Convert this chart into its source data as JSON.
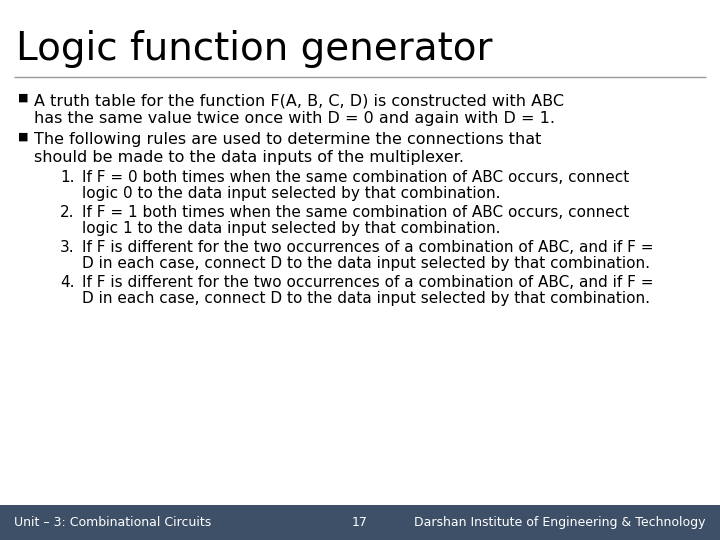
{
  "title": "Logic function generator",
  "bg_color": "#ffffff",
  "title_color": "#000000",
  "title_fontsize": 28,
  "body_fontsize": 11.5,
  "footer_fontsize": 9,
  "bullet1_line1": "A truth table for the function F(A, B, C, D) is constructed with ABC",
  "bullet1_line2": "has the same value twice once with D = 0 and again with D = 1.",
  "bullet2_line1": "The following rules are used to determine the connections that",
  "bullet2_line2": "should be made to the data inputs of the multiplexer.",
  "item1_line1": "If F = 0 both times when the same combination of ABC occurs, connect",
  "item1_line2": "logic 0 to the data input selected by that combination.",
  "item2_line1": "If F = 1 both times when the same combination of ABC occurs, connect",
  "item2_line2": "logic 1 to the data input selected by that combination.",
  "item3_line1": "If F is different for the two occurrences of a combination of ABC, and if F =",
  "item3_line2": "D in each case, connect D to the data input selected by that combination.",
  "item4_line1": "If F is different for the two occurrences of a combination of ABC, and if F =",
  "item4_line2": "D in each case, connect D to the data input selected by that combination.",
  "footer_left": "Unit – 3: Combinational Circuits",
  "footer_center": "17",
  "footer_right": "Darshan Institute of Engineering & Technology",
  "footer_bg": "#3d5068",
  "footer_text_color": "#ffffff",
  "separator_color": "#999999",
  "text_color": "#000000",
  "bullet_color": "#000000"
}
